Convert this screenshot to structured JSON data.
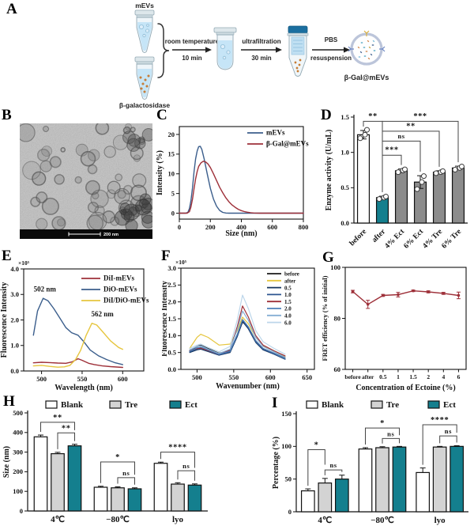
{
  "figure": {
    "panel_a": {
      "label": "A",
      "mevs_label": "mEVs",
      "enzyme_label": "β-galactosidase",
      "step1_line1": "room temperature",
      "step1_line2": "10 min",
      "step2_line1": "ultrafiltration",
      "step2_line2": "30 min",
      "step3_line1": "PBS",
      "step3_line2": "resuspension",
      "product_label": "β-Gal@mEVs"
    },
    "panel_b": {
      "label": "B",
      "scale_bar_text": "200 nm"
    },
    "panel_c": {
      "label": "C"
    },
    "panel_d": {
      "label": "D"
    },
    "panel_e": {
      "label": "E"
    },
    "panel_f": {
      "label": "F"
    },
    "panel_g": {
      "label": "G"
    },
    "panel_h": {
      "label": "H"
    },
    "panel_i": {
      "label": "I"
    }
  },
  "colors": {
    "teal": "#147f8e",
    "gray_bar": "#8c8c8c",
    "light_gray": "#d3d3d3",
    "navy": "#3b5e8c",
    "dark_red": "#9e3039",
    "yellow": "#e6c63f"
  },
  "chart_data": [
    {
      "id": "C",
      "type": "line",
      "xlabel": "Size (nm)",
      "ylabel": "Intensity (%)",
      "xlim": [
        0,
        800
      ],
      "ylim": [
        -1.5,
        22
      ],
      "xticks": [
        0,
        200,
        400,
        600,
        800
      ],
      "xtick_labels": [
        "0",
        "200",
        "400",
        "600",
        "800"
      ],
      "yticks": [
        0,
        5,
        10,
        15,
        20
      ],
      "ytick_labels": [
        "0",
        "5",
        "10",
        "15",
        "20"
      ],
      "legend_position": "top-right",
      "series": [
        {
          "name": "mEVs",
          "color": "#3b5e8c",
          "x": [
            0,
            40,
            55,
            65,
            75,
            85,
            95,
            105,
            115,
            125,
            135,
            145,
            160,
            180,
            200,
            220,
            240,
            260,
            280,
            300,
            320,
            360,
            800
          ],
          "y": [
            0,
            0,
            0.2,
            1.2,
            3.2,
            6.5,
            10.5,
            13.8,
            15.8,
            16.9,
            17.0,
            16.2,
            13.8,
            10.0,
            6.3,
            3.6,
            1.8,
            0.7,
            0.2,
            0.05,
            0,
            0,
            0
          ]
        },
        {
          "name": "β-Gal@mEVs",
          "color": "#9e3039",
          "x": [
            0,
            50,
            65,
            75,
            85,
            95,
            105,
            115,
            125,
            140,
            155,
            170,
            185,
            200,
            220,
            240,
            260,
            280,
            300,
            320,
            340,
            360,
            380,
            400,
            420,
            440,
            460,
            480,
            520,
            800
          ],
          "y": [
            0,
            0,
            0.4,
            1.6,
            3.6,
            6.2,
            8.7,
            10.6,
            11.9,
            12.8,
            13.2,
            13.0,
            12.5,
            11.6,
            10.0,
            8.3,
            6.6,
            5.2,
            3.9,
            2.9,
            2.1,
            1.5,
            1.0,
            0.65,
            0.4,
            0.25,
            0.12,
            0.05,
            0,
            0
          ]
        }
      ]
    },
    {
      "id": "D",
      "type": "bar",
      "ylabel": "Enzyme activity (U/mL)",
      "ylim": [
        0,
        1.5
      ],
      "yticks": [
        0,
        0.5,
        1.0,
        1.5
      ],
      "ytick_labels": [
        "0.0",
        "0.5",
        "1.0",
        "1.5"
      ],
      "categories": [
        "before",
        "after",
        "4% Ect",
        "6% Ect",
        "4% Tre",
        "6% Tre"
      ],
      "values": [
        1.25,
        0.36,
        0.74,
        0.58,
        0.72,
        0.78
      ],
      "errors": [
        0.06,
        0.02,
        0.025,
        0.09,
        0.02,
        0.025
      ],
      "bar_colors": [
        "#ffffff",
        "#147f8e",
        "#8c8c8c",
        "#8c8c8c",
        "#8c8c8c",
        "#8c8c8c"
      ],
      "points": [
        [
          1.2,
          1.25,
          1.32
        ],
        [
          0.34,
          0.36,
          0.375
        ],
        [
          0.72,
          0.745,
          0.76
        ],
        [
          0.48,
          0.58,
          0.665
        ],
        [
          0.705,
          0.72,
          0.735
        ],
        [
          0.755,
          0.78,
          0.8
        ]
      ],
      "brackets": [
        {
          "from": 0,
          "to": 1,
          "y": 1.44,
          "label": "**"
        },
        {
          "from": 1,
          "to": 5,
          "y": 1.44,
          "label": "***"
        },
        {
          "from": 1,
          "to": 4,
          "y": 1.3,
          "label": "**"
        },
        {
          "from": 1,
          "to": 3,
          "y": 1.16,
          "label": "ns"
        },
        {
          "from": 1,
          "to": 2,
          "y": 0.96,
          "label": "***"
        }
      ]
    },
    {
      "id": "E",
      "type": "line",
      "xlabel": "Wavelength (nm)",
      "ylabel": "Fluorescence Intensity",
      "exponent": "×10⁵",
      "xlim": [
        478,
        626
      ],
      "ylim": [
        0,
        4
      ],
      "xticks": [
        500,
        550,
        600
      ],
      "xtick_labels": [
        "500",
        "550",
        "600"
      ],
      "yticks": [
        0,
        1,
        2,
        3,
        4
      ],
      "ytick_labels": [
        "0.0",
        "1.0",
        "2.0",
        "3.0",
        "4.0"
      ],
      "legend_position": "top-right",
      "annotations": [
        {
          "text": "502 nm",
          "x": 504,
          "y": 3.12
        },
        {
          "text": "562 nm",
          "x": 575,
          "y": 2.14
        }
      ],
      "series": [
        {
          "name": "DiI-mEVs",
          "color": "#9e3039",
          "x": [
            490,
            500,
            510,
            520,
            530,
            538,
            545,
            550,
            558,
            565,
            575,
            585,
            600
          ],
          "y": [
            0.32,
            0.34,
            0.33,
            0.31,
            0.3,
            0.36,
            0.48,
            0.42,
            0.3,
            0.25,
            0.2,
            0.17,
            0.14
          ]
        },
        {
          "name": "DiO-mEVs",
          "color": "#3b5e8c",
          "x": [
            490,
            495,
            502,
            508,
            515,
            522,
            530,
            537,
            545,
            552,
            560,
            570,
            580,
            590,
            600
          ],
          "y": [
            1.4,
            2.35,
            2.85,
            2.75,
            2.45,
            2.1,
            1.7,
            1.5,
            1.4,
            1.15,
            0.82,
            0.6,
            0.45,
            0.33,
            0.25
          ]
        },
        {
          "name": "DiI/DiO-mEVs",
          "color": "#e6c63f",
          "x": [
            490,
            500,
            510,
            520,
            528,
            535,
            542,
            548,
            555,
            562,
            568,
            575,
            585,
            595,
            600
          ],
          "y": [
            0.2,
            0.22,
            0.18,
            0.15,
            0.16,
            0.22,
            0.45,
            0.8,
            1.4,
            1.87,
            1.8,
            1.55,
            1.18,
            0.92,
            0.85
          ]
        }
      ]
    },
    {
      "id": "F",
      "type": "line",
      "xlabel": "Wavenumber (nm)",
      "ylabel": "Fluorescence Intensity",
      "exponent": "×10⁵",
      "xlim": [
        478,
        660
      ],
      "ylim": [
        0,
        3
      ],
      "xticks": [
        500,
        550,
        600,
        650
      ],
      "xtick_labels": [
        "500",
        "550",
        "600",
        "650"
      ],
      "yticks": [
        0,
        0.5,
        1,
        1.5,
        2,
        2.5,
        3
      ],
      "ytick_labels": [
        "0.0",
        "0.5",
        "1.0",
        "1.5",
        "2.0",
        "2.5",
        "3.0"
      ],
      "legend_position": "top-right",
      "x_shared": [
        490,
        500,
        505,
        515,
        530,
        545,
        555,
        562,
        570,
        580,
        590,
        605,
        620
      ],
      "series": [
        {
          "name": "before",
          "color": "#1a1a1a",
          "y": [
            0.55,
            0.68,
            0.72,
            0.62,
            0.48,
            0.55,
            1.0,
            1.4,
            1.25,
            0.85,
            0.62,
            0.48,
            0.33
          ]
        },
        {
          "name": "after",
          "color": "#e6c63f",
          "y": [
            0.62,
            0.95,
            1.04,
            0.95,
            0.72,
            0.75,
            1.15,
            1.55,
            1.35,
            0.95,
            0.7,
            0.55,
            0.38
          ]
        },
        {
          "name": "0.5",
          "color": "#16355e",
          "y": [
            0.5,
            0.58,
            0.6,
            0.53,
            0.42,
            0.5,
            0.98,
            1.42,
            1.2,
            0.8,
            0.58,
            0.45,
            0.3
          ]
        },
        {
          "name": "1.0",
          "color": "#2d5590",
          "y": [
            0.52,
            0.61,
            0.63,
            0.55,
            0.43,
            0.52,
            1.0,
            1.45,
            1.23,
            0.82,
            0.6,
            0.46,
            0.31
          ]
        },
        {
          "name": "1.5",
          "color": "#9e3039",
          "y": [
            0.56,
            0.62,
            0.63,
            0.56,
            0.45,
            0.58,
            1.28,
            1.88,
            1.55,
            1.0,
            0.72,
            0.55,
            0.4
          ]
        },
        {
          "name": "2.0",
          "color": "#4d7fb8",
          "y": [
            0.54,
            0.64,
            0.66,
            0.58,
            0.45,
            0.54,
            1.05,
            1.48,
            1.26,
            0.85,
            0.62,
            0.48,
            0.32
          ]
        },
        {
          "name": "4.0",
          "color": "#85aed4",
          "y": [
            0.58,
            0.68,
            0.7,
            0.6,
            0.47,
            0.6,
            1.2,
            1.73,
            1.45,
            0.95,
            0.68,
            0.52,
            0.36
          ]
        },
        {
          "name": "6.0",
          "color": "#bcd6ea",
          "y": [
            0.62,
            0.72,
            0.75,
            0.65,
            0.52,
            0.68,
            1.48,
            2.2,
            1.8,
            1.15,
            0.82,
            0.62,
            0.45
          ]
        }
      ]
    },
    {
      "id": "G",
      "type": "line-error",
      "xlabel": "Concentration of Ectoine (%)",
      "ylabel": "FRET efficiency (% of initial)",
      "categories": [
        "before",
        "after",
        "0.5",
        "1",
        "1.5",
        "2",
        "4",
        "6"
      ],
      "values": [
        90.5,
        85.5,
        89.0,
        89.3,
        90.8,
        90.4,
        89.8,
        89.0
      ],
      "errors": [
        0.5,
        1.6,
        0.4,
        0.9,
        0.3,
        0.4,
        0.4,
        1.3
      ],
      "ylim": [
        60,
        100
      ],
      "yticks": [
        60,
        80,
        100
      ],
      "ytick_labels": [
        "60",
        "80",
        "100"
      ],
      "color": "#9e3039"
    },
    {
      "id": "H",
      "type": "grouped-bar",
      "ylabel": "Size (nm)",
      "ylim": [
        0,
        500
      ],
      "yticks": [
        0,
        100,
        200,
        300,
        400,
        500
      ],
      "ytick_labels": [
        "0",
        "100",
        "200",
        "300",
        "400",
        "500"
      ],
      "groups": [
        "4℃",
        "−80℃",
        "lyo"
      ],
      "series": [
        {
          "name": "Blank",
          "color": "#ffffff",
          "values": [
            378,
            121,
            243
          ],
          "errors": [
            9,
            5,
            6
          ]
        },
        {
          "name": "Tre",
          "color": "#d3d3d3",
          "values": [
            292,
            118,
            137
          ],
          "errors": [
            7,
            5,
            7
          ]
        },
        {
          "name": "Ect",
          "color": "#147f8e",
          "values": [
            332,
            113,
            132
          ],
          "errors": [
            8,
            5,
            6
          ]
        }
      ],
      "brackets": [
        {
          "group": 0,
          "from": 0,
          "to": 2,
          "y": 452,
          "label": "**",
          "e2": 412
        },
        {
          "group": 0,
          "from": 1,
          "to": 2,
          "y": 398,
          "label": "**"
        },
        {
          "group": 1,
          "from": 0,
          "to": 2,
          "y": 250,
          "label": "*",
          "e2": 185
        },
        {
          "group": 1,
          "from": 1,
          "to": 2,
          "y": 170,
          "label": "ns"
        },
        {
          "group": 2,
          "from": 0,
          "to": 2,
          "y": 300,
          "label": "****",
          "e2": 220
        },
        {
          "group": 2,
          "from": 1,
          "to": 2,
          "y": 205,
          "label": "ns"
        }
      ]
    },
    {
      "id": "I",
      "type": "grouped-bar",
      "ylabel": "Percentage (%)",
      "ylim": [
        0,
        150
      ],
      "yticks": [
        0,
        50,
        100,
        150
      ],
      "ytick_labels": [
        "0",
        "50",
        "100",
        "150"
      ],
      "groups": [
        "4℃",
        "−80℃",
        "lyo"
      ],
      "series": [
        {
          "name": "Blank",
          "color": "#ffffff",
          "values": [
            32,
            96,
            60
          ],
          "errors": [
            3,
            2,
            7
          ]
        },
        {
          "name": "Tre",
          "color": "#d3d3d3",
          "values": [
            44,
            98,
            99
          ],
          "errors": [
            7,
            1.5,
            1
          ]
        },
        {
          "name": "Ect",
          "color": "#147f8e",
          "values": [
            50,
            99,
            100
          ],
          "errors": [
            6,
            1,
            1
          ]
        }
      ],
      "brackets": [
        {
          "group": 0,
          "from": 0,
          "to": 1,
          "y": 95,
          "label": "*",
          "e2": 72
        },
        {
          "group": 0,
          "from": 1,
          "to": 2,
          "y": 64,
          "label": "ns"
        },
        {
          "group": 1,
          "from": 0,
          "to": 2,
          "y": 128,
          "label": "*",
          "e2": 117
        },
        {
          "group": 1,
          "from": 1,
          "to": 2,
          "y": 112,
          "label": "ns"
        },
        {
          "group": 2,
          "from": 0,
          "to": 2,
          "y": 133,
          "label": "****",
          "e2": 121
        },
        {
          "group": 2,
          "from": 1,
          "to": 2,
          "y": 116,
          "label": "ns"
        }
      ]
    }
  ]
}
